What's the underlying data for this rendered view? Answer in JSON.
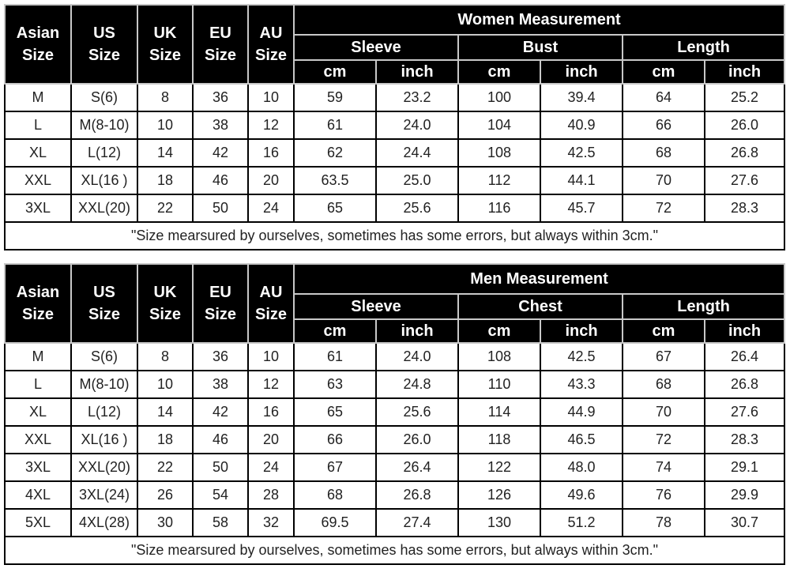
{
  "header_cols": [
    {
      "line1": "Asian",
      "line2": "Size"
    },
    {
      "line1": "US",
      "line2": "Size"
    },
    {
      "line1": "UK",
      "line2": "Size"
    },
    {
      "line1": "EU",
      "line2": "Size"
    },
    {
      "line1": "AU",
      "line2": "Size"
    }
  ],
  "unit_cm": "cm",
  "unit_inch": "inch",
  "note": "\"Size mearsured by ourselves, sometimes has some errors, but always within 3cm.\"",
  "women": {
    "title": "Women Measurement",
    "groups": [
      "Sleeve",
      "Bust",
      "Length"
    ],
    "rows": [
      [
        "M",
        "S(6)",
        "8",
        "36",
        "10",
        "59",
        "23.2",
        "100",
        "39.4",
        "64",
        "25.2"
      ],
      [
        "L",
        "M(8-10)",
        "10",
        "38",
        "12",
        "61",
        "24.0",
        "104",
        "40.9",
        "66",
        "26.0"
      ],
      [
        "XL",
        "L(12)",
        "14",
        "42",
        "16",
        "62",
        "24.4",
        "108",
        "42.5",
        "68",
        "26.8"
      ],
      [
        "XXL",
        "XL(16 )",
        "18",
        "46",
        "20",
        "63.5",
        "25.0",
        "112",
        "44.1",
        "70",
        "27.6"
      ],
      [
        "3XL",
        "XXL(20)",
        "22",
        "50",
        "24",
        "65",
        "25.6",
        "116",
        "45.7",
        "72",
        "28.3"
      ]
    ]
  },
  "men": {
    "title": "Men Measurement",
    "groups": [
      "Sleeve",
      "Chest",
      "Length"
    ],
    "rows": [
      [
        "M",
        "S(6)",
        "8",
        "36",
        "10",
        "61",
        "24.0",
        "108",
        "42.5",
        "67",
        "26.4"
      ],
      [
        "L",
        "M(8-10)",
        "10",
        "38",
        "12",
        "63",
        "24.8",
        "110",
        "43.3",
        "68",
        "26.8"
      ],
      [
        "XL",
        "L(12)",
        "14",
        "42",
        "16",
        "65",
        "25.6",
        "114",
        "44.9",
        "70",
        "27.6"
      ],
      [
        "XXL",
        "XL(16 )",
        "18",
        "46",
        "20",
        "66",
        "26.0",
        "118",
        "46.5",
        "72",
        "28.3"
      ],
      [
        "3XL",
        "XXL(20)",
        "22",
        "50",
        "24",
        "67",
        "26.4",
        "122",
        "48.0",
        "74",
        "29.1"
      ],
      [
        "4XL",
        "3XL(24)",
        "26",
        "54",
        "28",
        "68",
        "26.8",
        "126",
        "49.6",
        "76",
        "29.9"
      ],
      [
        "5XL",
        "4XL(28)",
        "30",
        "58",
        "32",
        "69.5",
        "27.4",
        "130",
        "51.2",
        "78",
        "30.7"
      ]
    ]
  }
}
